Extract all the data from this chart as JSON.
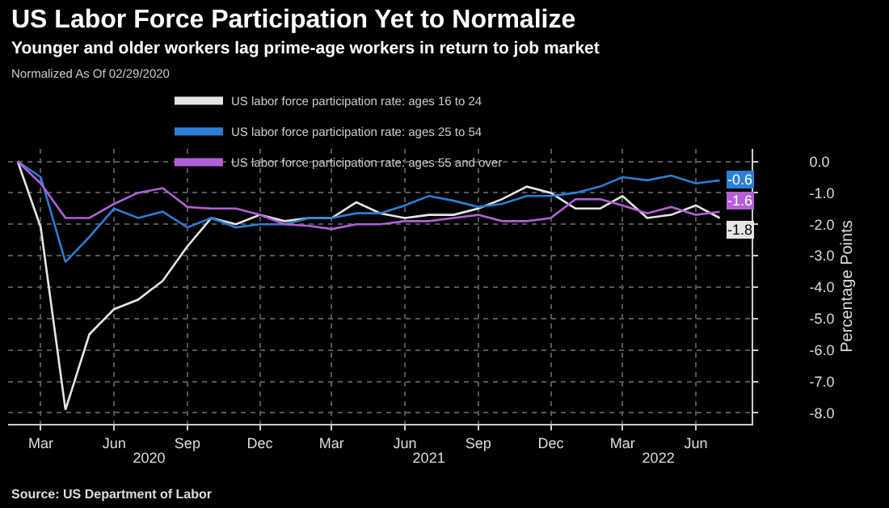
{
  "chart_data": {
    "type": "line",
    "title": "US Labor Force Participation Yet to Normalize",
    "subtitle": "Younger and older workers lag prime-age workers in return to job market",
    "legend_title": "Normalized As Of 02/29/2020",
    "ylabel": "Percentage Points",
    "x": [
      "2020-02",
      "2020-03",
      "2020-04",
      "2020-05",
      "2020-06",
      "2020-07",
      "2020-08",
      "2020-09",
      "2020-10",
      "2020-11",
      "2020-12",
      "2021-01",
      "2021-02",
      "2021-03",
      "2021-04",
      "2021-05",
      "2021-06",
      "2021-07",
      "2021-08",
      "2021-09",
      "2021-10",
      "2021-11",
      "2021-12",
      "2022-01",
      "2022-02",
      "2022-03",
      "2022-04",
      "2022-05",
      "2022-06",
      "2022-07"
    ],
    "series": [
      {
        "name": "US labor force participation rate: ages 16 to 24",
        "color": "#e6e6e6",
        "values": [
          0,
          -2.1,
          -7.9,
          -5.5,
          -4.7,
          -4.4,
          -3.8,
          -2.7,
          -1.8,
          -2.0,
          -1.7,
          -1.9,
          -1.8,
          -1.8,
          -1.3,
          -1.65,
          -1.8,
          -1.7,
          -1.7,
          -1.5,
          -1.2,
          -0.8,
          -1.0,
          -1.5,
          -1.5,
          -1.1,
          -1.8,
          -1.7,
          -1.4,
          -1.8
        ]
      },
      {
        "name": "US labor force participation rate: ages 25 to 54",
        "color": "#2b7fd6",
        "values": [
          0,
          -0.5,
          -3.2,
          -2.4,
          -1.5,
          -1.8,
          -1.6,
          -2.1,
          -1.8,
          -2.1,
          -2.0,
          -2.0,
          -1.8,
          -1.8,
          -1.65,
          -1.65,
          -1.4,
          -1.1,
          -1.25,
          -1.45,
          -1.35,
          -1.1,
          -1.1,
          -1.0,
          -0.8,
          -0.5,
          -0.6,
          -0.45,
          -0.7,
          -0.6
        ]
      },
      {
        "name": "US labor force participation rate: ages 55 and over",
        "color": "#b45fd8",
        "values": [
          0,
          -0.7,
          -1.8,
          -1.8,
          -1.35,
          -1.0,
          -0.85,
          -1.45,
          -1.5,
          -1.5,
          -1.7,
          -2.0,
          -2.05,
          -2.15,
          -2.0,
          -2.0,
          -1.9,
          -1.9,
          -1.8,
          -1.7,
          -1.9,
          -1.9,
          -1.8,
          -1.2,
          -1.2,
          -1.4,
          -1.65,
          -1.45,
          -1.7,
          -1.6
        ]
      }
    ],
    "xlim": [
      "2020-01-20",
      "2022-08-10"
    ],
    "xticks": [
      {
        "value": "2020-03",
        "label": "Mar"
      },
      {
        "value": "2020-06",
        "label": "Jun"
      },
      {
        "value": "2020-09",
        "label": "Sep"
      },
      {
        "value": "2020-12",
        "label": "Dec"
      },
      {
        "value": "2021-03",
        "label": "Mar"
      },
      {
        "value": "2021-06",
        "label": "Jun"
      },
      {
        "value": "2021-09",
        "label": "Sep"
      },
      {
        "value": "2021-12",
        "label": "Dec"
      },
      {
        "value": "2022-03",
        "label": "Mar"
      },
      {
        "value": "2022-06",
        "label": "Jun"
      }
    ],
    "x2lim": [
      "2020-01-20",
      "2022-08-10"
    ],
    "x2ticks": [
      {
        "value": "2020-07-15",
        "label": "2020"
      },
      {
        "value": "2021-07-01",
        "label": "2021"
      },
      {
        "value": "2022-04-15",
        "label": "2022"
      }
    ],
    "ylim": [
      -8.35,
      0.4
    ],
    "yticks": [
      {
        "value": 0,
        "label": "0.0"
      },
      {
        "value": -1,
        "label": "-1.0"
      },
      {
        "value": -2,
        "label": "-2.0"
      },
      {
        "value": -3,
        "label": "-3.0"
      },
      {
        "value": -4,
        "label": "-4.0"
      },
      {
        "value": -5,
        "label": "-5.0"
      },
      {
        "value": -6,
        "label": "-6.0"
      },
      {
        "value": -7,
        "label": "-7.0"
      },
      {
        "value": -8,
        "label": "-8.0"
      }
    ],
    "annotations": [
      {
        "text": "-0.6",
        "x": "2022-07",
        "y": -0.6
      },
      {
        "text": "-1.6",
        "x": "2022-07",
        "y": -1.6
      },
      {
        "text": "-1.8",
        "x": "2022-07",
        "y": -1.8
      },
      "Source: US Department of Labor"
    ],
    "grid": true,
    "legend": "top",
    "marker": "none",
    "line_style": "solid"
  }
}
